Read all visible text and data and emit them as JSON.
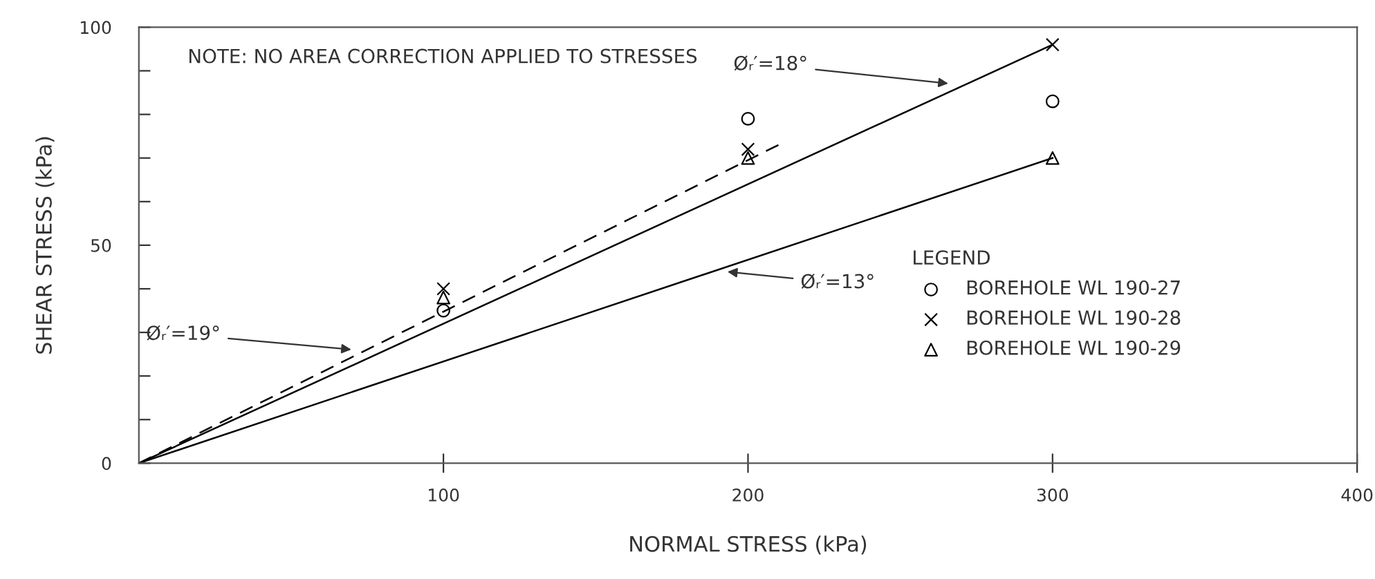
{
  "chart_data": {
    "type": "scatter",
    "xlabel": "NORMAL STRESS (kPa)",
    "ylabel": "SHEAR STRESS (kPa)",
    "legend_title": "LEGEND",
    "xlim": [
      0,
      400
    ],
    "ylim": [
      0,
      100
    ],
    "xticks": [
      100,
      200,
      300,
      400
    ],
    "yticks": [
      0,
      {
        "value": 10,
        "label": null
      },
      {
        "value": 20,
        "label": null
      },
      {
        "value": 30,
        "label": null
      },
      {
        "value": 40,
        "label": null
      },
      50,
      {
        "value": 60,
        "label": null
      },
      {
        "value": 70,
        "label": null
      },
      {
        "value": 80,
        "label": null
      },
      {
        "value": 90,
        "label": null
      },
      100
    ],
    "grid": false,
    "legend": "bottom right",
    "series": [
      {
        "name": "BOREHOLE WL 190-27",
        "marker": "circle",
        "color": "#000000",
        "x": [
          100,
          200,
          300
        ],
        "values": [
          35,
          79,
          83
        ]
      },
      {
        "name": "BOREHOLE WL 190-28",
        "marker": "cross",
        "color": "#000000",
        "x": [
          100,
          200,
          300
        ],
        "values": [
          40,
          72,
          96
        ]
      },
      {
        "name": "BOREHOLE WL 190-29",
        "marker": "triangle",
        "color": "#000000",
        "x": [
          100,
          200,
          300
        ],
        "values": [
          38,
          70,
          70
        ]
      },
      {
        "type": "line",
        "line_style": "solid",
        "color": "#000000",
        "x": [
          0,
          300
        ],
        "values": [
          0,
          96
        ]
      },
      {
        "type": "line",
        "line_style": "dashed",
        "color": "#000000",
        "x": [
          0,
          210
        ],
        "values": [
          0,
          73
        ]
      },
      {
        "type": "line",
        "line_style": "solid",
        "color": "#000000",
        "x": [
          0,
          300
        ],
        "values": [
          0,
          70
        ]
      }
    ],
    "annotations": [
      "NOTE: NO AREA CORRECTION APPLIED TO STRESSES",
      {
        "text": "Øᵣ′=18°",
        "x": 267,
        "y": 87
      },
      {
        "text": "Øᵣ′=19°",
        "x": 71,
        "y": 26
      },
      {
        "text": "Øᵣ′=13°",
        "x": 192,
        "y": 44
      }
    ]
  }
}
